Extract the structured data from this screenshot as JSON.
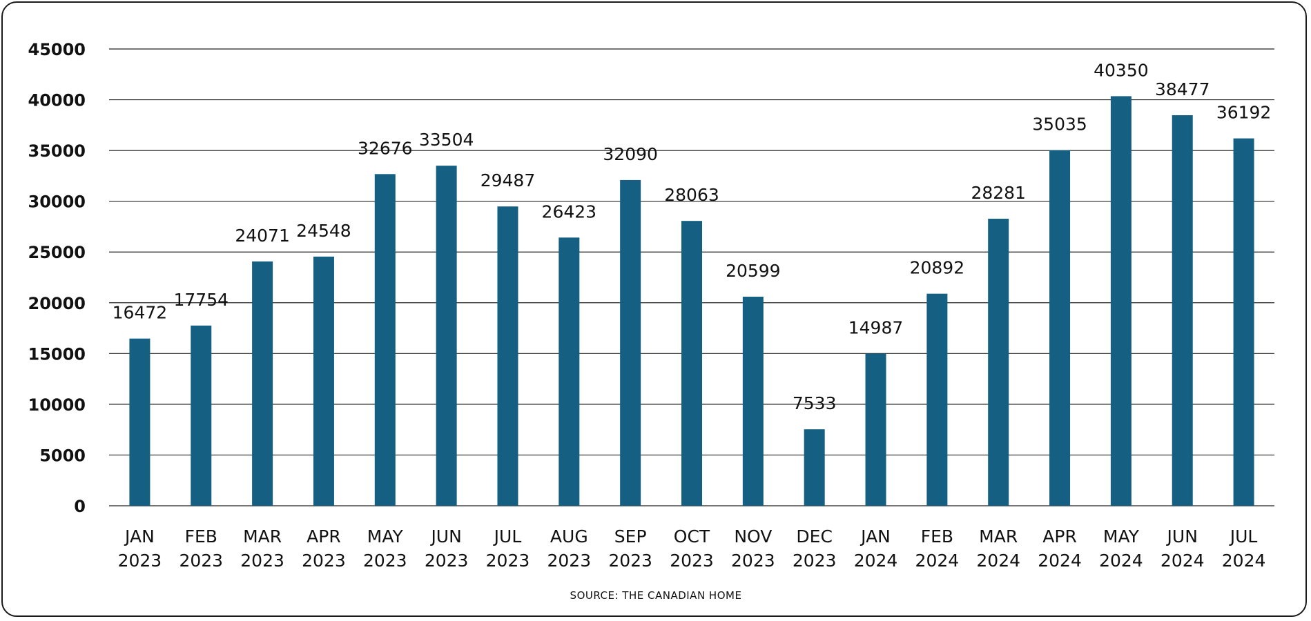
{
  "chart_data": {
    "type": "bar",
    "title": "",
    "xlabel": "",
    "ylabel": "",
    "ylim": [
      0,
      45000
    ],
    "yticks": [
      0,
      5000,
      10000,
      15000,
      20000,
      25000,
      30000,
      35000,
      40000,
      45000
    ],
    "grid": true,
    "legend": "none",
    "bar_color": "#156082",
    "categories": [
      [
        "JAN",
        "2023"
      ],
      [
        "FEB",
        "2023"
      ],
      [
        "MAR",
        "2023"
      ],
      [
        "APR",
        "2023"
      ],
      [
        "MAY",
        "2023"
      ],
      [
        "JUN",
        "2023"
      ],
      [
        "JUL",
        "2023"
      ],
      [
        "AUG",
        "2023"
      ],
      [
        "SEP",
        "2023"
      ],
      [
        "OCT",
        "2023"
      ],
      [
        "NOV",
        "2023"
      ],
      [
        "DEC",
        "2023"
      ],
      [
        "JAN",
        "2024"
      ],
      [
        "FEB",
        "2024"
      ],
      [
        "MAR",
        "2024"
      ],
      [
        "APR",
        "2024"
      ],
      [
        "MAY",
        "2024"
      ],
      [
        "JUN",
        "2024"
      ],
      [
        "JUL",
        "2024"
      ]
    ],
    "values": [
      16472,
      17754,
      24071,
      24548,
      32676,
      33504,
      29487,
      26423,
      32090,
      28063,
      20599,
      7533,
      14987,
      20892,
      28281,
      35035,
      40350,
      38477,
      36192
    ],
    "source": "SOURCE: THE CANADIAN HOME"
  }
}
